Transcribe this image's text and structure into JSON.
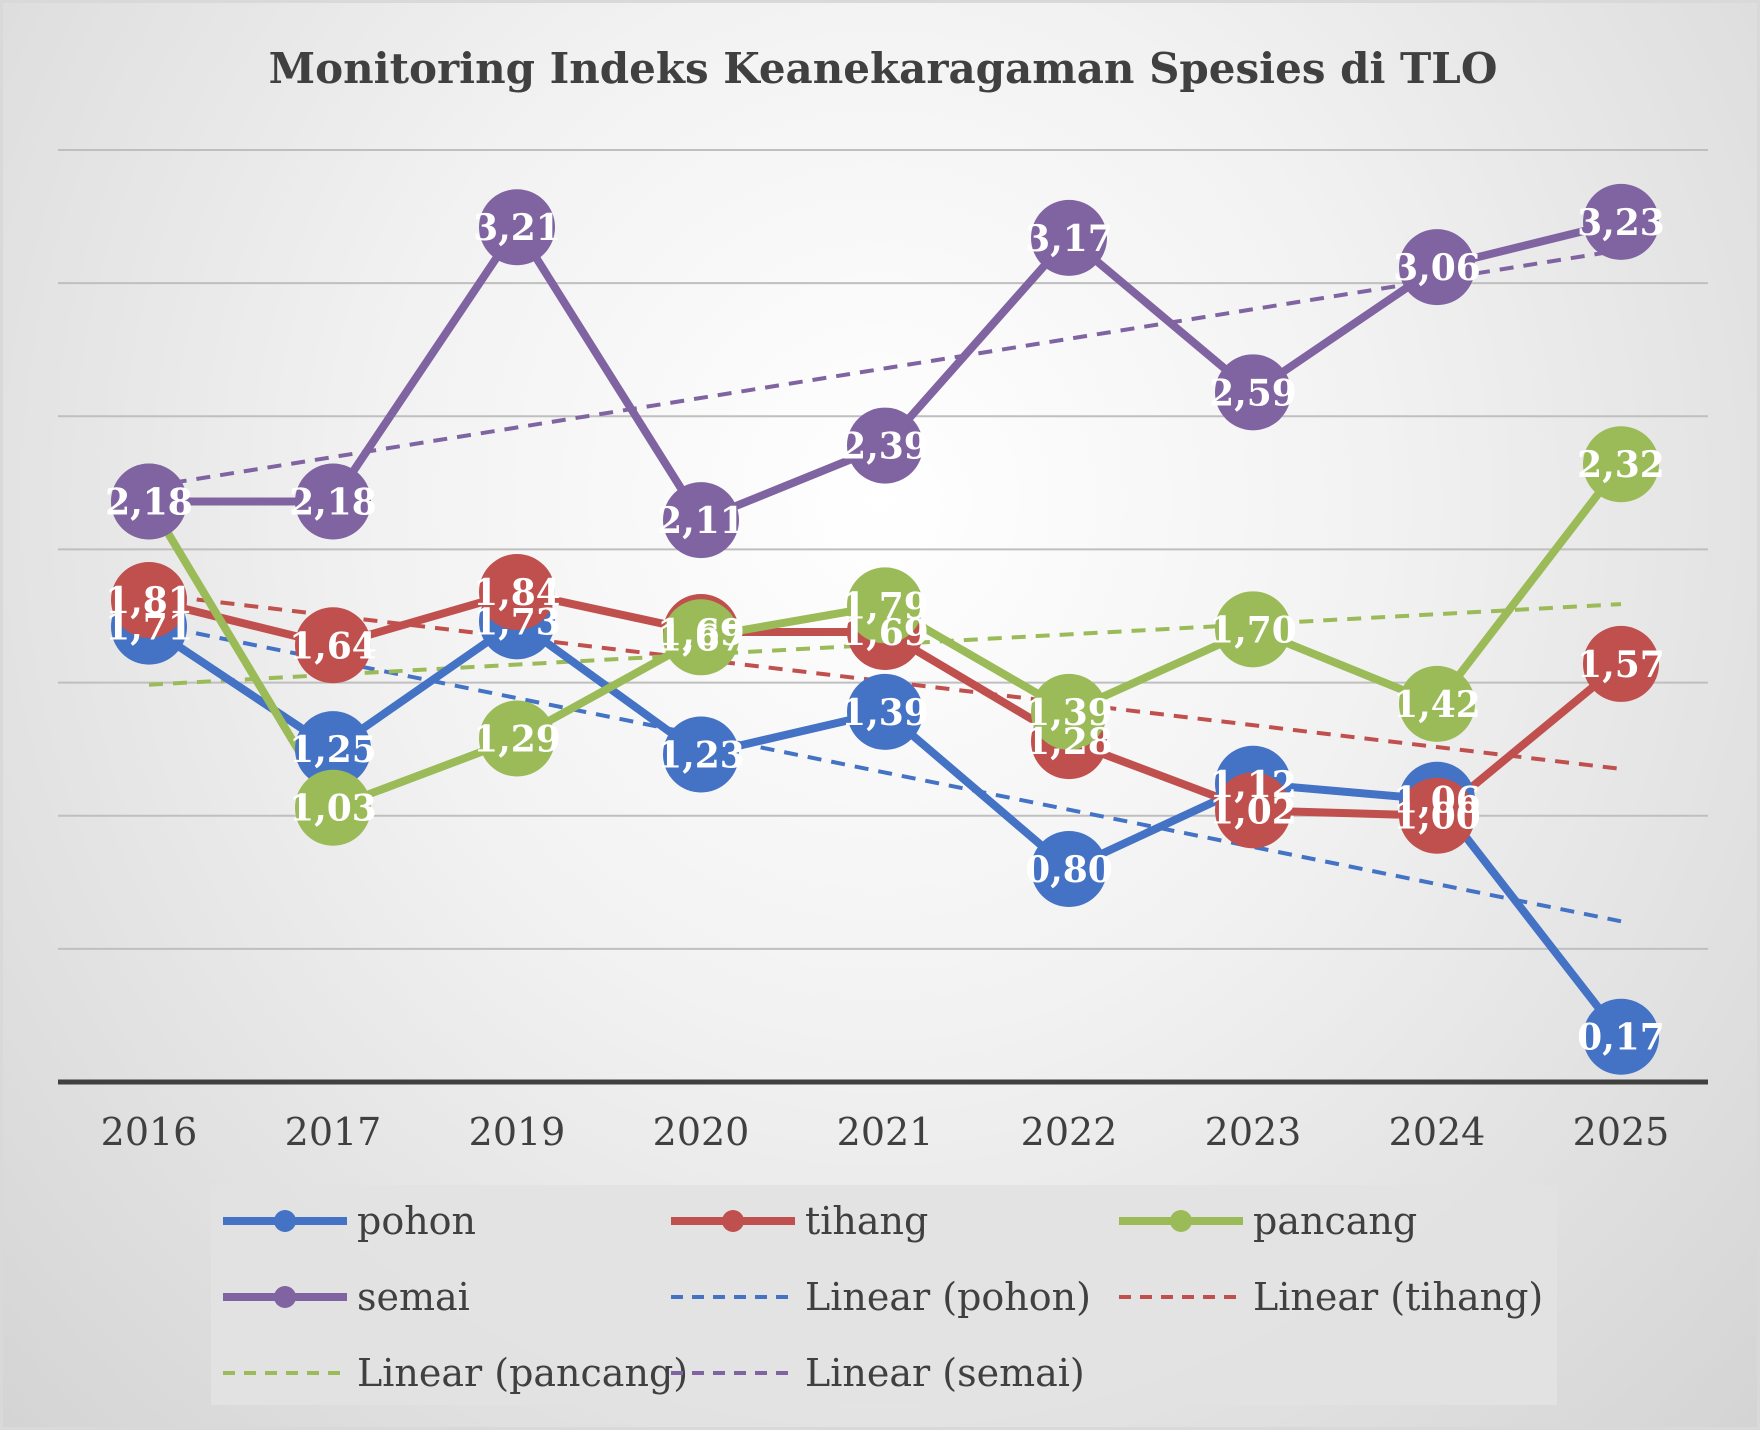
{
  "chart_data": {
    "type": "line",
    "title": "Monitoring Indeks Keanekaragaman Spesies di TLO",
    "categories": [
      "2016",
      "2017",
      "2019",
      "2020",
      "2021",
      "2022",
      "2023",
      "2024",
      "2025"
    ],
    "ylim": [
      0,
      3.5
    ],
    "ytick_step": 0.5,
    "grid": true,
    "legend_position": "bottom",
    "series": [
      {
        "name": "pohon",
        "color": "#4472C4",
        "values": [
          1.71,
          1.25,
          1.73,
          1.23,
          1.39,
          0.8,
          1.12,
          1.06,
          0.17
        ],
        "labels": [
          "1,71",
          "1,25",
          "1,73",
          "1,23",
          "1,39",
          "0,80",
          "1,12",
          "1,06",
          "0,17"
        ]
      },
      {
        "name": "tihang",
        "color": "#C0504D",
        "values": [
          1.81,
          1.64,
          1.84,
          1.69,
          1.69,
          1.28,
          1.02,
          1.0,
          1.57
        ],
        "labels": [
          "1,81",
          "1,64",
          "1,84",
          "1,69",
          "1,69",
          "1,28",
          "1,02",
          "1,00",
          "1,57"
        ]
      },
      {
        "name": "pancang",
        "color": "#9BBB59",
        "values": [
          2.18,
          1.03,
          1.29,
          1.67,
          1.79,
          1.39,
          1.7,
          1.42,
          2.32
        ],
        "labels": [
          "2,18",
          "1,03",
          "1,29",
          "1,67",
          "1,79",
          "1,39",
          "1,70",
          "1,42",
          "2,32"
        ]
      },
      {
        "name": "semai",
        "color": "#8064A2",
        "values": [
          2.18,
          2.18,
          3.21,
          2.11,
          2.39,
          3.17,
          2.59,
          3.06,
          3.23
        ],
        "labels": [
          "2,18",
          "2,18",
          "3,21",
          "2,11",
          "2,39",
          "3,17",
          "2,59",
          "3,06",
          "3,23"
        ]
      }
    ],
    "trendlines": [
      {
        "name": "Linear (pohon)",
        "series": "pohon",
        "color": "#4472C4"
      },
      {
        "name": "Linear (tihang)",
        "series": "tihang",
        "color": "#C0504D"
      },
      {
        "name": "Linear (pancang)",
        "series": "pancang",
        "color": "#9BBB59"
      },
      {
        "name": "Linear (semai)",
        "series": "semai",
        "color": "#8064A2"
      }
    ],
    "legend": [
      {
        "label": "pohon",
        "style": "line-marker",
        "color": "#4472C4"
      },
      {
        "label": "tihang",
        "style": "line-marker",
        "color": "#C0504D"
      },
      {
        "label": "pancang",
        "style": "line-marker",
        "color": "#9BBB59"
      },
      {
        "label": "semai",
        "style": "line-marker",
        "color": "#8064A2"
      },
      {
        "label": "Linear (pohon)",
        "style": "dashed",
        "color": "#4472C4"
      },
      {
        "label": "Linear (tihang)",
        "style": "dashed",
        "color": "#C0504D"
      },
      {
        "label": "Linear (pancang)",
        "style": "dashed",
        "color": "#9BBB59"
      },
      {
        "label": "Linear (semai)",
        "style": "dashed",
        "color": "#8064A2"
      }
    ]
  }
}
